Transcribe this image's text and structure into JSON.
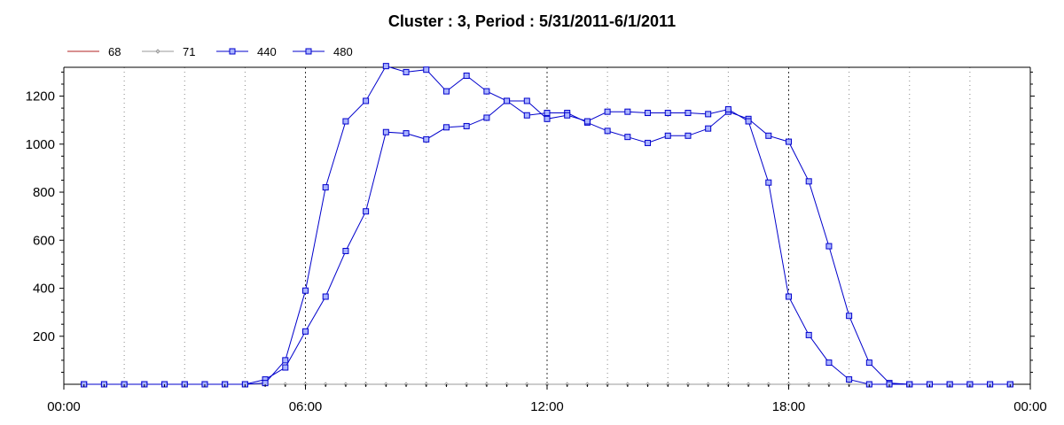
{
  "chart_data": {
    "type": "line",
    "title": "Cluster : 3, Period : 5/31/2011-6/1/2011",
    "xlabel": "",
    "ylabel": "",
    "x_ticks": [
      "00:00",
      "06:00",
      "12:00",
      "18:00",
      "00:00"
    ],
    "y_ticks": [
      "200",
      "400",
      "600",
      "800",
      "1000",
      "1200"
    ],
    "ylim": [
      0,
      1320
    ],
    "xlim_hours": [
      0,
      24
    ],
    "grid": "vertical dotted lines every 1.5 hours (hourly-half), darker at 6-hour marks",
    "legend_placement": "top-left",
    "x_hours": [
      0.5,
      1,
      1.5,
      2,
      2.5,
      3,
      3.5,
      4,
      4.5,
      5,
      5.5,
      6,
      6.5,
      7,
      7.5,
      8,
      8.5,
      9,
      9.5,
      10,
      10.5,
      11,
      11.5,
      12,
      12.5,
      13,
      13.5,
      14,
      14.5,
      15,
      15.5,
      16,
      16.5,
      17,
      17.5,
      18,
      18.5,
      19,
      19.5,
      20,
      20.5,
      21,
      21.5,
      22,
      22.5,
      23,
      23.5
    ],
    "series": [
      {
        "name": "68",
        "color": "#b22222",
        "marker": "none",
        "values": [
          0,
          0,
          0,
          0,
          0,
          0,
          0,
          0,
          0,
          0,
          0,
          0,
          0,
          0,
          0,
          0,
          0,
          0,
          0,
          0,
          0,
          0,
          0,
          0,
          0,
          0,
          0,
          0,
          0,
          0,
          0,
          0,
          0,
          0,
          0,
          0,
          0,
          0,
          0,
          0,
          0,
          0,
          0,
          0,
          0,
          0,
          0
        ]
      },
      {
        "name": "71",
        "color": "#999999",
        "marker": "diamond",
        "values": [
          0,
          0,
          0,
          0,
          0,
          0,
          0,
          0,
          0,
          0,
          0,
          0,
          0,
          0,
          0,
          0,
          0,
          0,
          0,
          0,
          0,
          0,
          0,
          0,
          0,
          0,
          0,
          0,
          0,
          0,
          0,
          0,
          0,
          0,
          0,
          0,
          0,
          0,
          0,
          0,
          0,
          0,
          0,
          0,
          0,
          0,
          0
        ]
      },
      {
        "name": "440",
        "color": "#0000cc",
        "marker": "square",
        "values": [
          0,
          0,
          0,
          0,
          0,
          0,
          0,
          0,
          0,
          20,
          70,
          220,
          365,
          555,
          720,
          1050,
          1045,
          1020,
          1070,
          1075,
          1110,
          1180,
          1120,
          1130,
          1130,
          1090,
          1055,
          1030,
          1005,
          1035,
          1035,
          1065,
          1135,
          1105,
          1035,
          1010,
          845,
          575,
          285,
          90,
          5,
          0,
          0,
          0,
          0,
          0,
          0
        ]
      },
      {
        "name": "480",
        "color": "#0000cc",
        "marker": "square",
        "values": [
          0,
          0,
          0,
          0,
          0,
          0,
          0,
          0,
          0,
          5,
          100,
          390,
          820,
          1095,
          1180,
          1325,
          1300,
          1310,
          1220,
          1285,
          1220,
          1180,
          1180,
          1105,
          1120,
          1095,
          1135,
          1135,
          1130,
          1130,
          1130,
          1125,
          1145,
          1095,
          840,
          365,
          205,
          90,
          20,
          0,
          0,
          0,
          0,
          0,
          0,
          0,
          0
        ]
      }
    ]
  }
}
